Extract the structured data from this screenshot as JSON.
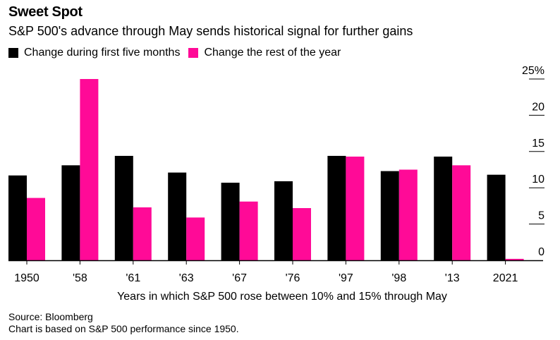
{
  "header": {
    "title": "Sweet Spot",
    "subtitle": "S&P 500's advance through May sends historical signal for further gains"
  },
  "colors": {
    "series1": "#000000",
    "series2": "#ff0a97",
    "axis": "#000000"
  },
  "chart_data": {
    "type": "bar",
    "categories": [
      "1950",
      "'58",
      "'61",
      "'63",
      "'67",
      "'76",
      "'97",
      "'98",
      "'13",
      "2021"
    ],
    "series": [
      {
        "name": "Change during first five months",
        "values": [
          11.7,
          13.1,
          14.4,
          12.1,
          10.7,
          10.9,
          14.4,
          12.3,
          14.3,
          11.8
        ]
      },
      {
        "name": "Change the rest of the year",
        "values": [
          8.6,
          25.0,
          7.3,
          5.9,
          8.1,
          7.2,
          14.3,
          12.5,
          13.1,
          0.2
        ]
      }
    ],
    "xlabel": "Years in which S&P 500 rose between 10% and 15% through May",
    "ylabel": "",
    "ylim": [
      0,
      25
    ],
    "y_ticks": [
      {
        "value": 0,
        "label": "0"
      },
      {
        "value": 5,
        "label": "5"
      },
      {
        "value": 10,
        "label": "10"
      },
      {
        "value": 15,
        "label": "15"
      },
      {
        "value": 20,
        "label": "20"
      },
      {
        "value": 25,
        "label": "25%"
      }
    ],
    "y_axis_position": "right",
    "grid": false,
    "legend_position": "top-left"
  },
  "footer": {
    "source": "Source: Bloomberg",
    "note": "Chart is based on S&P 500 performance since 1950."
  }
}
